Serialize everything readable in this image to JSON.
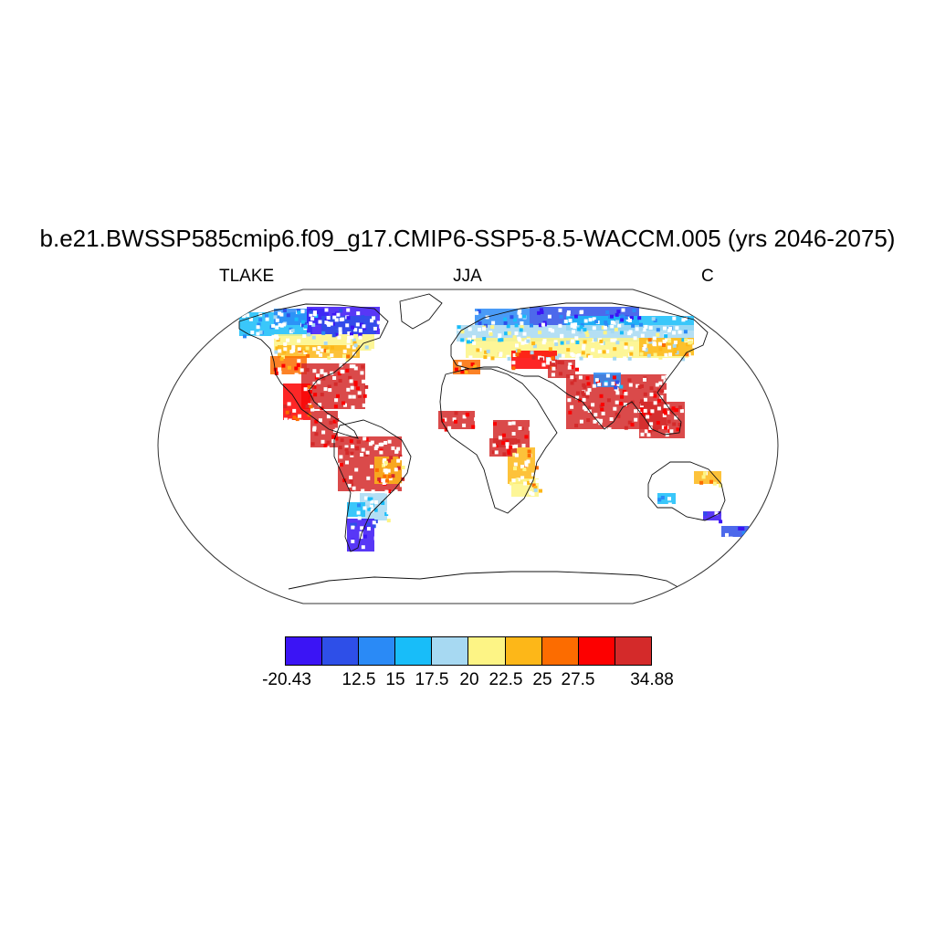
{
  "title": "b.e21.BWSSP585cmip6.f09_g17.CMIP6-SSP5-8.5-WACCM.005 (yrs 2046-2075)",
  "subtitle_left": "TLAKE",
  "subtitle_center": "JJA",
  "subtitle_right": "C",
  "colorbar": {
    "colors": [
      "#3b14f5",
      "#2e4fe8",
      "#2a8af6",
      "#18bdf9",
      "#a7d9f2",
      "#fdf485",
      "#fdb718",
      "#fc6c00",
      "#fd0000",
      "#d42a2a"
    ],
    "labels": [
      "-20.43",
      "12.5",
      "15",
      "17.5",
      "20",
      "22.5",
      "25",
      "27.5",
      "34.88"
    ]
  }
}
